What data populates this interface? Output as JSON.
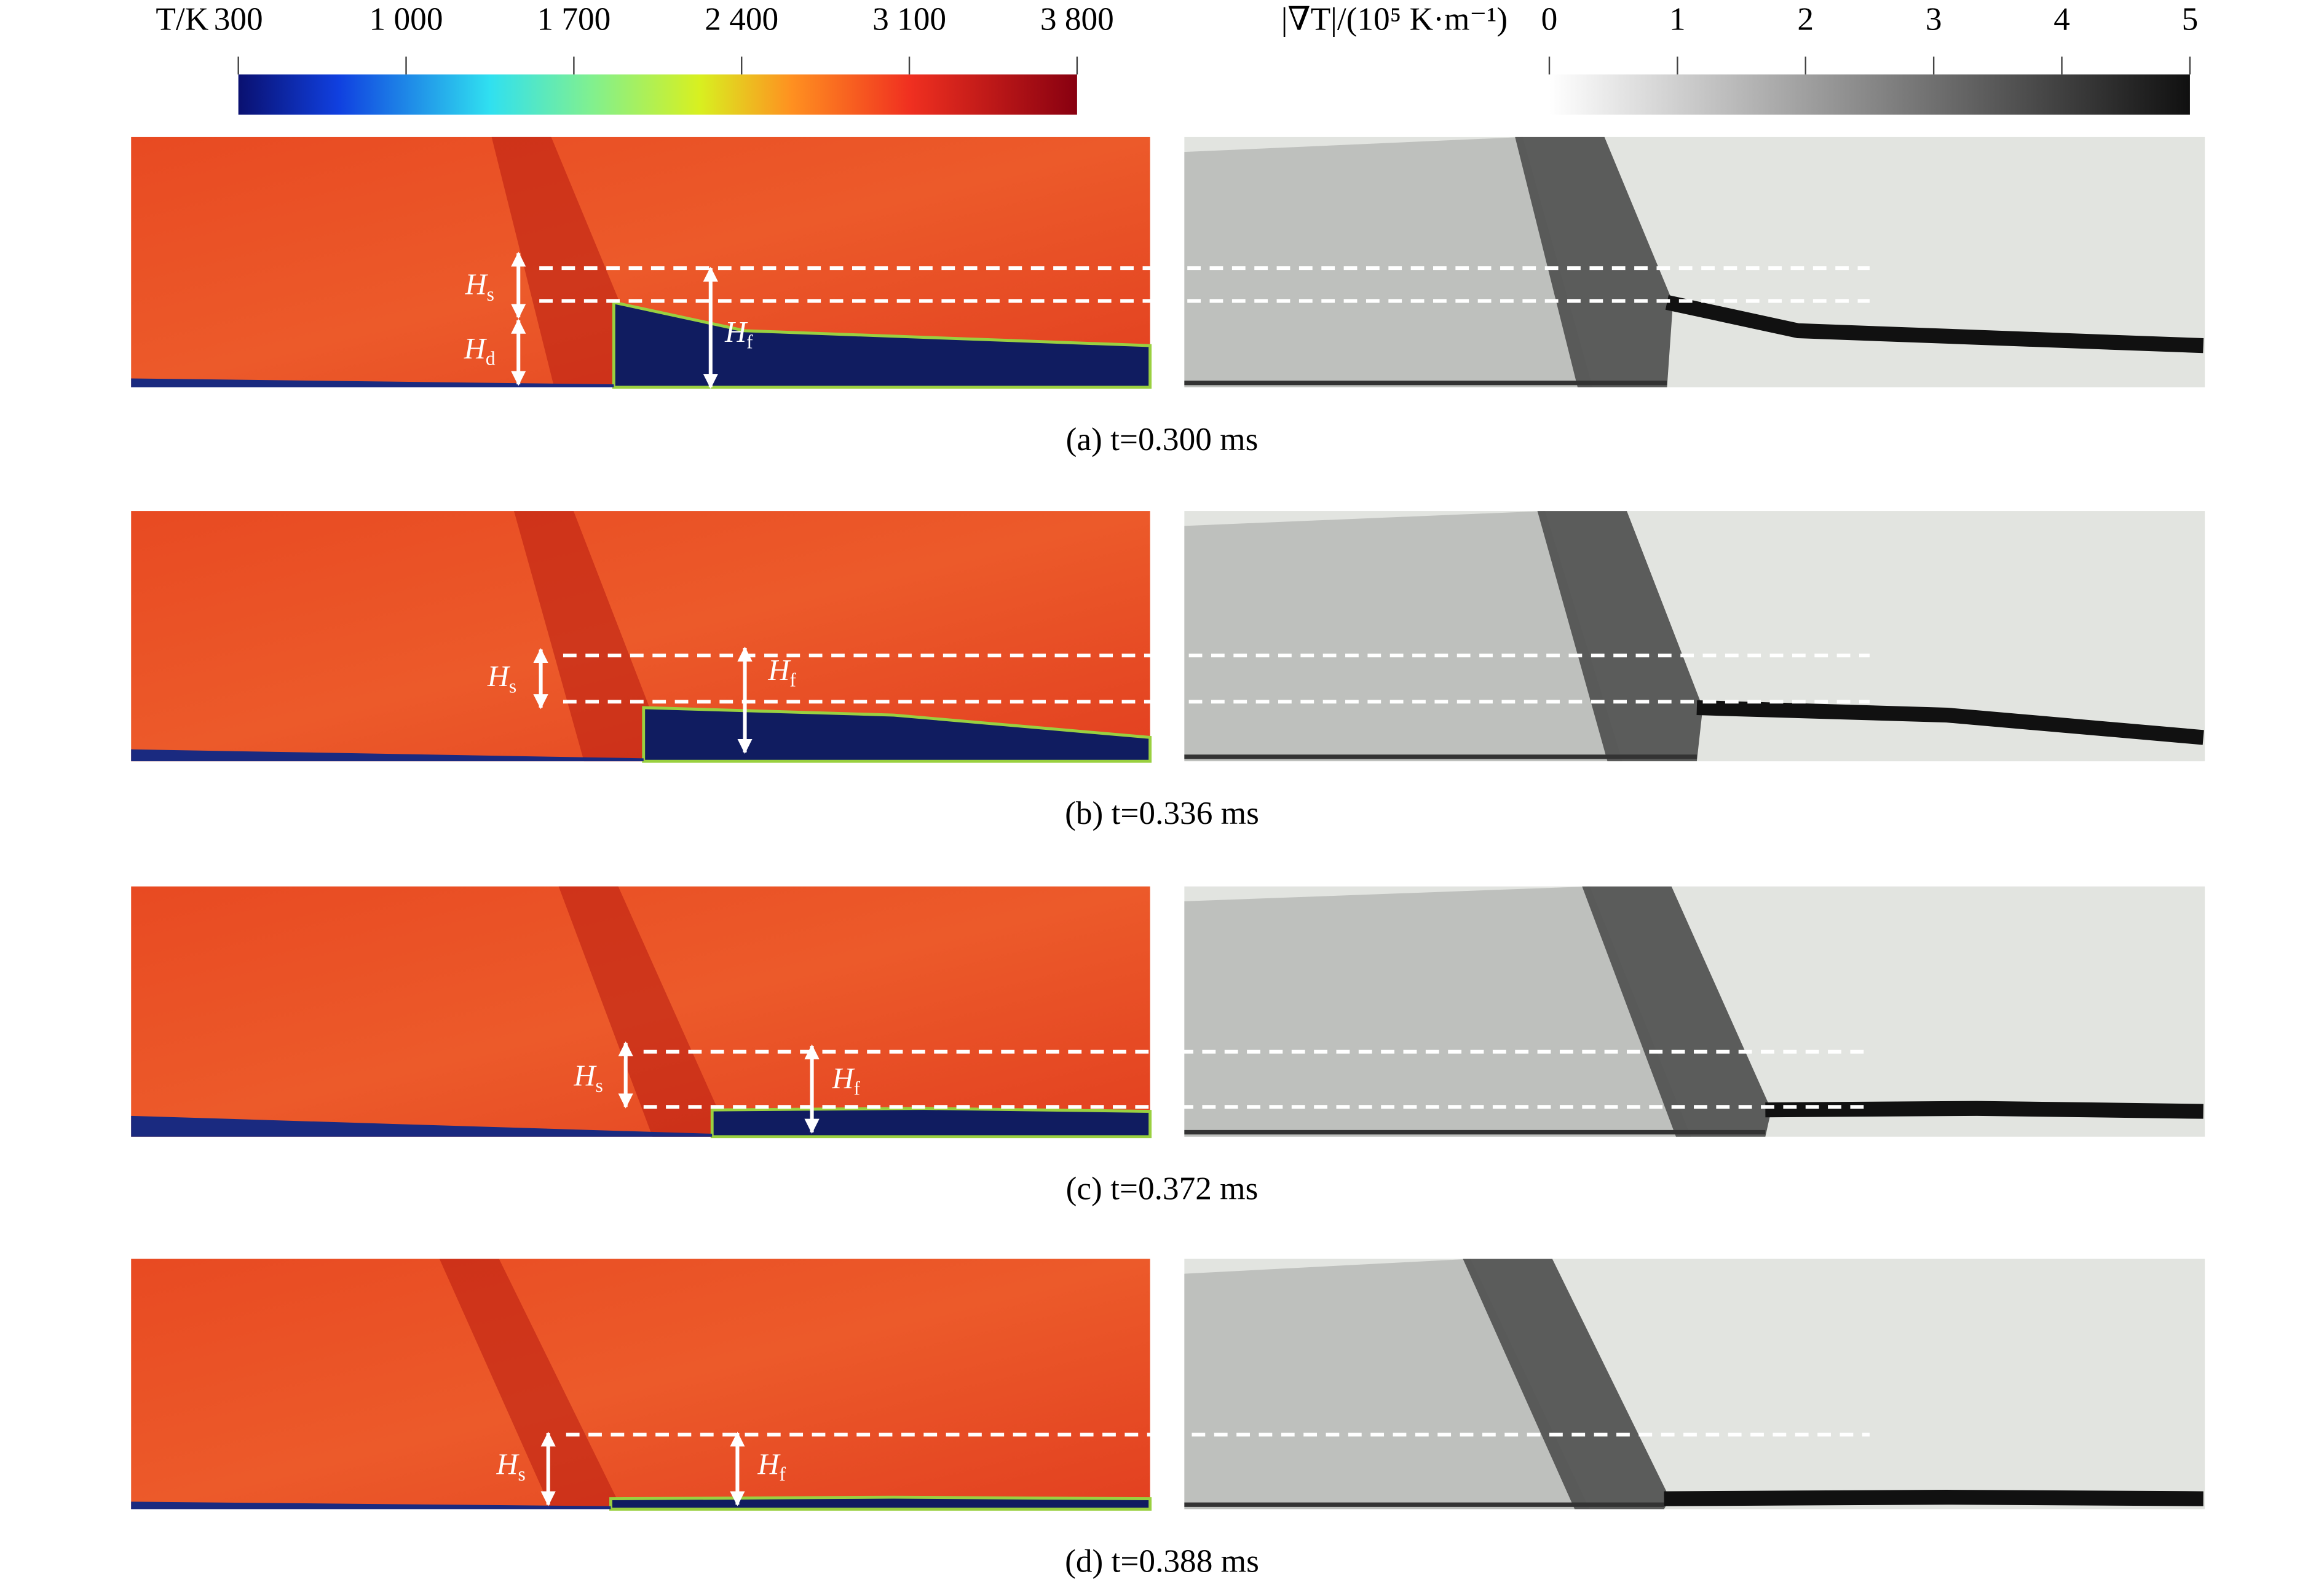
{
  "colorbars": [
    {
      "label": "T/K",
      "ticks": [
        {
          "value": 300,
          "label": "300"
        },
        {
          "value": 1000,
          "label": "1 000"
        },
        {
          "value": 1700,
          "label": "1 700"
        },
        {
          "value": 2400,
          "label": "2 400"
        },
        {
          "value": 3100,
          "label": "3 100"
        },
        {
          "value": 3800,
          "label": "3 800"
        }
      ]
    },
    {
      "label": "|∇T|/(10⁵ K·m⁻¹)",
      "ticks": [
        0,
        1,
        2,
        3,
        4,
        5
      ]
    }
  ],
  "panels": [
    {
      "caption": "(a) t=0.300 ms",
      "annotations": [
        {
          "symbol": "H",
          "subscript": "s"
        },
        {
          "symbol": "H",
          "subscript": "d"
        },
        {
          "symbol": "H",
          "subscript": "f"
        }
      ]
    },
    {
      "caption": "(b) t=0.336 ms",
      "annotations": [
        {
          "symbol": "H",
          "subscript": "s"
        },
        {
          "symbol": "H",
          "subscript": "f"
        }
      ]
    },
    {
      "caption": "(c) t=0.372 ms",
      "annotations": [
        {
          "symbol": "H",
          "subscript": "s"
        },
        {
          "symbol": "H",
          "subscript": "f"
        }
      ]
    },
    {
      "caption": "(d) t=0.388 ms",
      "annotations": [
        {
          "symbol": "H",
          "subscript": "s"
        },
        {
          "symbol": "H",
          "subscript": "f"
        }
      ]
    }
  ]
}
